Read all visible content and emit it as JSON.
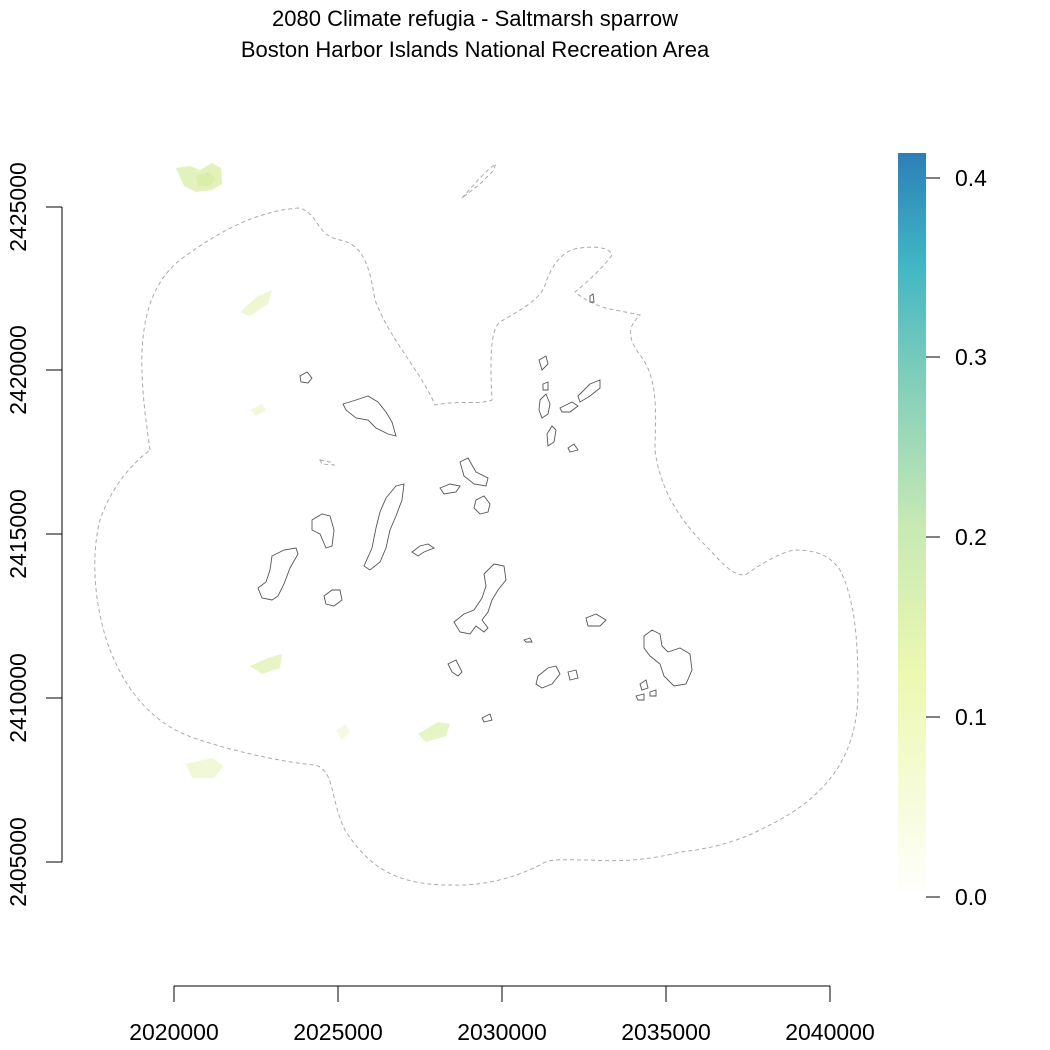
{
  "title": {
    "line1": "2080 Climate refugia - Saltmarsh sparrow",
    "line2": "Boston Harbor Islands National Recreation Area"
  },
  "x_axis": {
    "ticks": [
      "2020000",
      "2025000",
      "2030000",
      "2035000",
      "2040000"
    ]
  },
  "y_axis": {
    "ticks": [
      "2405000",
      "2410000",
      "2415000",
      "2420000",
      "2425000"
    ]
  },
  "legend": {
    "ticks": [
      "0.0",
      "0.1",
      "0.2",
      "0.3",
      "0.4"
    ],
    "max": 0.415,
    "colors": [
      "#ffffff",
      "#f7fcdc",
      "#edf8b1",
      "#c7e9b4",
      "#7fcdbb",
      "#41b6c4",
      "#2c7fb8"
    ]
  },
  "colors": {
    "islands_outline": "#555555",
    "park_boundary": "#aaaaaa"
  },
  "refugia_patches_note_values": [
    0.05,
    0.08,
    0.06,
    0.04,
    0.07
  ]
}
